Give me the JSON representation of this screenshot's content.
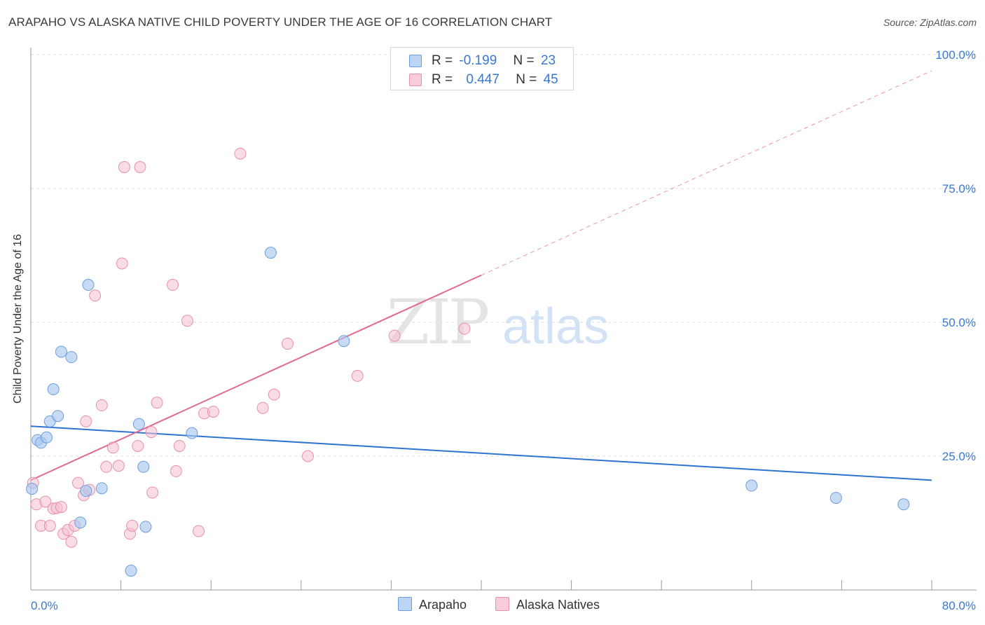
{
  "title": "ARAPAHO VS ALASKA NATIVE CHILD POVERTY UNDER THE AGE OF 16 CORRELATION CHART",
  "source": "Source: ZipAtlas.com",
  "watermark": {
    "zip": "ZIP",
    "atlas": "atlas"
  },
  "legend": {
    "rows": [
      {
        "r_label": "R =",
        "r_value": "-0.199",
        "n_label": "N =",
        "n_value": "23"
      },
      {
        "r_label": "R =",
        "r_value": "0.447",
        "n_label": "N =",
        "n_value": "45"
      }
    ]
  },
  "bottom_legend": [
    "Arapaho",
    "Alaska Natives"
  ],
  "colors": {
    "arapaho_fill": "#a9c8f0",
    "arapaho_stroke": "#6d9ee0",
    "arapaho_line": "#2e74d0",
    "alaska_fill": "#f6c0d0",
    "alaska_stroke": "#e890ab",
    "alaska_line": "#e06a93",
    "tick_label": "#3a78d0",
    "grid": "#dddddd"
  },
  "chart_data": {
    "type": "scatter",
    "xlabel": "",
    "ylabel": "Child Poverty Under the Age of 16",
    "xlim": [
      0,
      80
    ],
    "ylim": [
      0,
      100
    ],
    "x_tick_labels": [
      "0.0%",
      "80.0%"
    ],
    "y_ticks": [
      25,
      50,
      75,
      100
    ],
    "y_tick_labels": [
      "25.0%",
      "50.0%",
      "75.0%",
      "100.0%"
    ],
    "grid": true,
    "series": [
      {
        "name": "Arapaho",
        "points": [
          [
            0.1,
            18.9
          ],
          [
            0.6,
            28.0
          ],
          [
            0.9,
            27.5
          ],
          [
            1.4,
            28.5
          ],
          [
            1.7,
            31.5
          ],
          [
            2.0,
            37.5
          ],
          [
            2.4,
            32.5
          ],
          [
            2.7,
            44.5
          ],
          [
            3.6,
            43.5
          ],
          [
            4.4,
            12.6
          ],
          [
            4.9,
            18.5
          ],
          [
            5.1,
            57.0
          ],
          [
            6.3,
            19.0
          ],
          [
            8.9,
            3.6
          ],
          [
            9.6,
            31.0
          ],
          [
            10.0,
            23.0
          ],
          [
            10.2,
            11.8
          ],
          [
            14.3,
            29.3
          ],
          [
            21.3,
            63.0
          ],
          [
            27.8,
            46.5
          ],
          [
            64.0,
            19.5
          ],
          [
            71.5,
            17.2
          ],
          [
            77.5,
            16.0
          ]
        ],
        "trend": {
          "x": [
            0,
            80
          ],
          "y": [
            30.6,
            20.5
          ]
        }
      },
      {
        "name": "Alaska Natives",
        "points": [
          [
            0.2,
            20.0
          ],
          [
            0.5,
            16.0
          ],
          [
            0.9,
            12.0
          ],
          [
            1.3,
            16.5
          ],
          [
            1.7,
            12.0
          ],
          [
            2.0,
            15.2
          ],
          [
            2.3,
            15.3
          ],
          [
            2.7,
            15.5
          ],
          [
            2.9,
            10.5
          ],
          [
            3.3,
            11.2
          ],
          [
            3.6,
            9.0
          ],
          [
            3.9,
            12.0
          ],
          [
            4.2,
            20.0
          ],
          [
            4.7,
            17.7
          ],
          [
            4.9,
            31.5
          ],
          [
            5.2,
            18.7
          ],
          [
            5.7,
            55.0
          ],
          [
            6.3,
            34.5
          ],
          [
            6.7,
            23.0
          ],
          [
            7.3,
            26.6
          ],
          [
            7.8,
            23.2
          ],
          [
            8.1,
            61.0
          ],
          [
            8.3,
            79.0
          ],
          [
            8.8,
            10.5
          ],
          [
            9.0,
            12.0
          ],
          [
            9.5,
            26.9
          ],
          [
            9.7,
            79.0
          ],
          [
            10.7,
            29.5
          ],
          [
            10.8,
            18.2
          ],
          [
            11.2,
            35.0
          ],
          [
            12.6,
            57.0
          ],
          [
            12.9,
            22.2
          ],
          [
            13.2,
            26.9
          ],
          [
            13.9,
            50.3
          ],
          [
            14.9,
            11.0
          ],
          [
            15.4,
            33.0
          ],
          [
            16.2,
            33.3
          ],
          [
            18.6,
            81.5
          ],
          [
            20.6,
            34.0
          ],
          [
            21.6,
            36.5
          ],
          [
            22.8,
            46.0
          ],
          [
            24.6,
            25.0
          ],
          [
            29.0,
            40.0
          ],
          [
            32.3,
            47.5
          ],
          [
            38.5,
            48.8
          ]
        ],
        "trend": {
          "x": [
            0,
            40
          ],
          "y": [
            20.5,
            58.8
          ]
        },
        "trend_extension": {
          "x": [
            40,
            80
          ],
          "y": [
            58.8,
            97.0
          ]
        }
      }
    ]
  }
}
